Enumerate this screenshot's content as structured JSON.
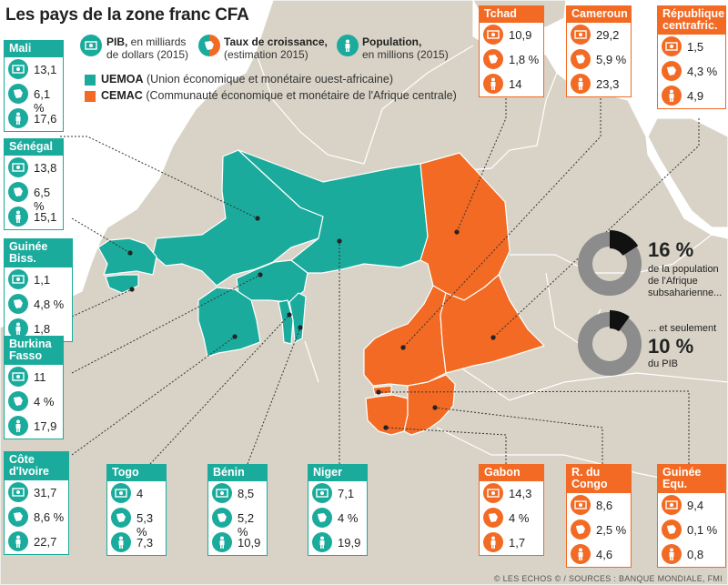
{
  "title": "Les pays de la zone franc CFA",
  "legend": {
    "pib_bold": "PIB,",
    "pib_rest": " en milliards",
    "pib_line2": "de dollars (2015)",
    "growth_bold": "Taux de croissance,",
    "growth_line2": "(estimation 2015)",
    "pop_bold": "Population,",
    "pop_line2": "en millions (2015)",
    "uemoa_code": "UEMOA",
    "uemoa_desc": " (Union économique et monétaire ouest-africaine)",
    "cemac_code": "CEMAC",
    "cemac_desc": " (Communauté économique et monétaire de l'Afrique centrale)"
  },
  "colors": {
    "uemoa": "#1bab9c",
    "cemac": "#f26a23",
    "land": "#d8d3c6",
    "sea": "#ffffff",
    "border": "#ffffff"
  },
  "icons": {
    "pib": "money-stack-icon",
    "growth": "country-shape-icon",
    "population": "person-icon"
  },
  "countries": {
    "mali": {
      "name": "Mali",
      "pib": "13,1",
      "growth": "6,1 %",
      "pop": "17,6"
    },
    "senegal": {
      "name": "Sénégal",
      "pib": "13,8",
      "growth": "6,5 %",
      "pop": "15,1"
    },
    "guinee_bissau": {
      "name": "Guinée Biss.",
      "pib": "1,1",
      "growth": "4,8 %",
      "pop": "1,8"
    },
    "burkina": {
      "name": "Burkina Fasso",
      "pib": "11",
      "growth": "4 %",
      "pop": "17,9"
    },
    "cote_ivoire": {
      "name": "Côte d'Ivoire",
      "pib": "31,7",
      "growth": "8,6 %",
      "pop": "22,7"
    },
    "togo": {
      "name": "Togo",
      "pib": "4",
      "growth": "5,3 %",
      "pop": "7,3"
    },
    "benin": {
      "name": "Bénin",
      "pib": "8,5",
      "growth": "5,2 %",
      "pop": "10,9"
    },
    "niger": {
      "name": "Niger",
      "pib": "7,1",
      "growth": "4 %",
      "pop": "19,9"
    },
    "tchad": {
      "name": "Tchad",
      "pib": "10,9",
      "growth": "1,8 %",
      "pop": "14"
    },
    "cameroun": {
      "name": "Cameroun",
      "pib": "29,2",
      "growth": "5,9 %",
      "pop": "23,3"
    },
    "rca": {
      "name": "République centrafric.",
      "pib": "1,5",
      "growth": "4,3 %",
      "pop": "4,9"
    },
    "gabon": {
      "name": "Gabon",
      "pib": "14,3",
      "growth": "4 %",
      "pop": "1,7"
    },
    "congo": {
      "name": "R. du Congo",
      "pib": "8,6",
      "growth": "2,5 %",
      "pop": "4,6"
    },
    "guinee_eq": {
      "name": "Guinée Equ.",
      "pib": "9,4",
      "growth": "0,1 %",
      "pop": "0,8"
    }
  },
  "share_population": {
    "pct": "16 %",
    "fraction": 0.16,
    "text1": "de la population",
    "text2": "de l'Afrique",
    "text3": "subsaharienne..."
  },
  "share_pib": {
    "pct": "10 %",
    "fraction": 0.1,
    "intro": "... et seulement",
    "text1": "du PIB"
  },
  "source": "© LES ECHOS © / SOURCES : BANQUE MONDIALE, FMI"
}
